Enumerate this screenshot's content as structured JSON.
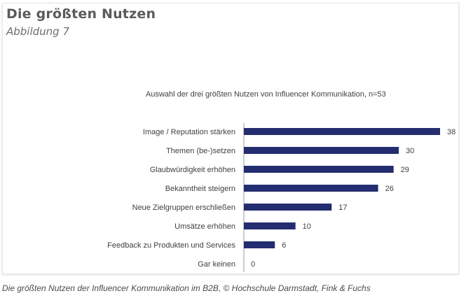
{
  "header": {
    "title": "Die größten Nutzen",
    "subtitle": "Abbildung 7"
  },
  "caption": "Die größten Nutzen der Influencer Kommunikation im B2B, © Hochschule Darmstadt, Fink & Fuchs",
  "colors": {
    "bar": "#232d6f",
    "axis": "#9a9a9a",
    "text": "#404040"
  },
  "chart_data": {
    "type": "bar",
    "orientation": "horizontal",
    "title": "Auswahl der drei größten Nutzen von Influencer Kommunikation, n=53",
    "categories": [
      "Image / Reputation stärken",
      "Themen  (be-)setzen",
      "Glaubwürdigkeit erhöhen",
      "Bekanntheit steigern",
      "Neue Zielgruppen erschließen",
      "Umsätze erhöhen",
      "Feedback zu Produkten und Services",
      "Gar keinen"
    ],
    "values": [
      38,
      30,
      29,
      26,
      17,
      10,
      6,
      0
    ],
    "xlim": [
      0,
      38
    ],
    "grid": false,
    "legend": "none"
  }
}
